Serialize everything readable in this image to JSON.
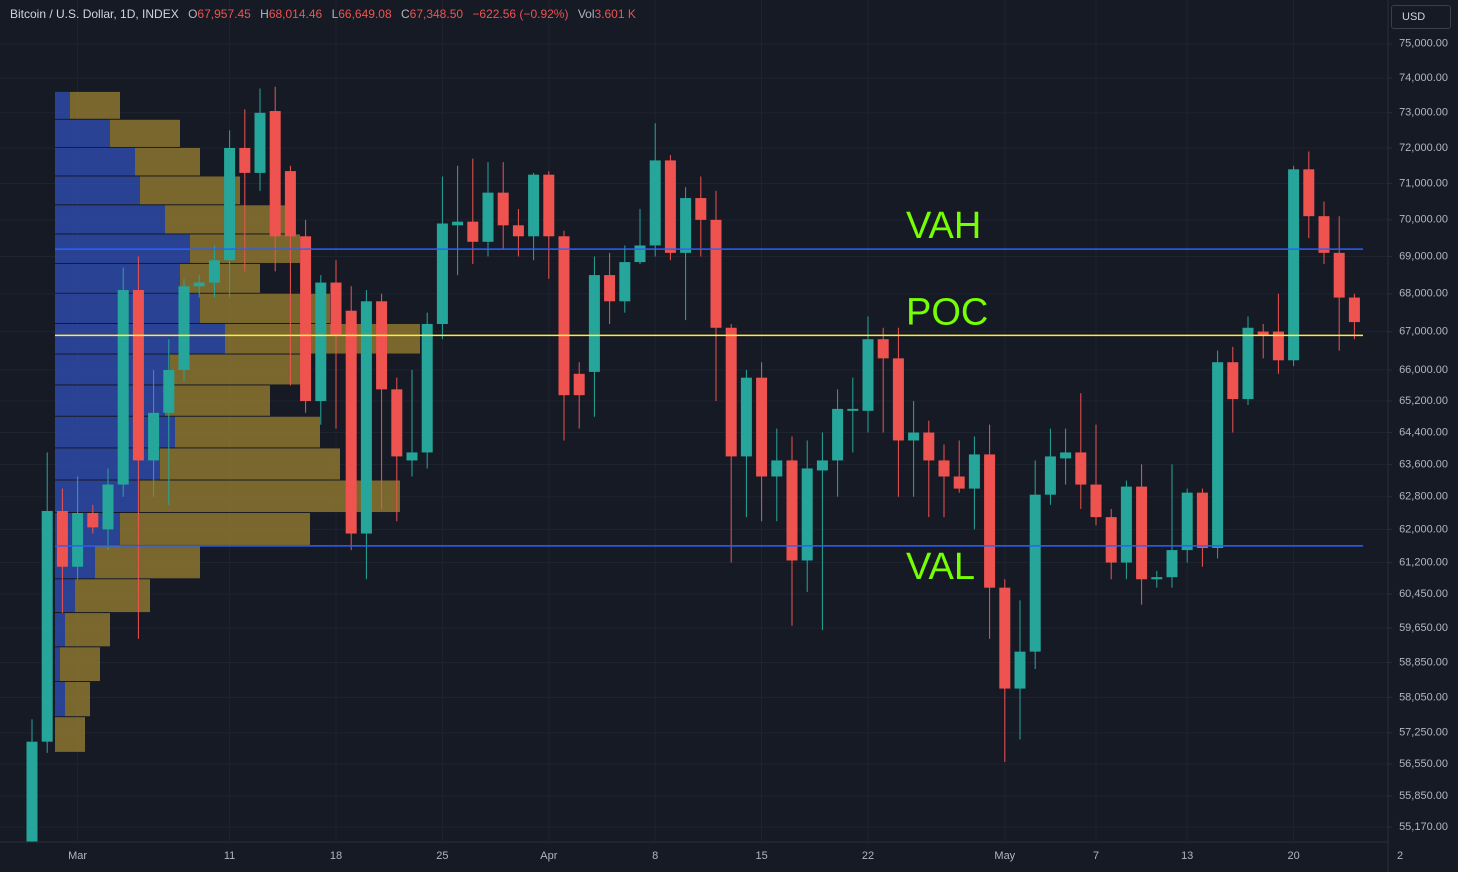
{
  "chart_data": {
    "type": "candlestick",
    "header": {
      "symbol": "Bitcoin / U.S. Dollar, 1D, INDEX",
      "fields": [
        {
          "label": "O",
          "value": "67,957.45"
        },
        {
          "label": "H",
          "value": "68,014.46"
        },
        {
          "label": "L",
          "value": "66,649.08"
        },
        {
          "label": "C",
          "value": "67,348.50"
        }
      ],
      "change": "−622.56 (−0.92%)",
      "volume_label": "Vol",
      "volume": "3.601 K"
    },
    "currency_button": "USD",
    "log_scale": true,
    "grid": true,
    "up_color": "#26a69a",
    "down_color": "#ef5350",
    "categories": [
      null,
      null,
      null,
      "Mar",
      null,
      null,
      null,
      null,
      null,
      null,
      null,
      null,
      null,
      "11",
      null,
      null,
      null,
      null,
      null,
      null,
      "18",
      null,
      null,
      null,
      null,
      null,
      null,
      "25",
      null,
      null,
      null,
      null,
      null,
      null,
      "Apr",
      null,
      null,
      null,
      null,
      null,
      null,
      "8",
      null,
      null,
      null,
      null,
      null,
      null,
      "15",
      null,
      null,
      null,
      null,
      null,
      null,
      "22",
      null,
      null,
      null,
      null,
      null,
      null,
      null,
      null,
      "May",
      null,
      null,
      null,
      null,
      null,
      "7",
      null,
      null,
      null,
      null,
      null,
      "13",
      null,
      null,
      null,
      null,
      null,
      null,
      "20",
      null,
      null,
      null,
      null,
      null,
      null,
      "2"
    ],
    "open": [
      54500,
      57050,
      62450,
      61100,
      62400,
      62000,
      63100,
      68100,
      63700,
      64900,
      66000,
      68200,
      68300,
      68900,
      72000,
      71300,
      73050,
      71350,
      69550,
      65200,
      68300,
      67550,
      61900,
      67800,
      65500,
      63700,
      63900,
      67200,
      69850,
      69950,
      69400,
      70750,
      69850,
      69550,
      71250,
      69550,
      65900,
      65950,
      68500,
      67800,
      68850,
      69300,
      71650,
      69100,
      70600,
      70000,
      67100,
      63800,
      65800,
      63300,
      63700,
      61250,
      63450,
      63700,
      64950,
      64950,
      66800,
      66300,
      64200,
      64400,
      63700,
      63300,
      63000,
      63850,
      60600,
      58250,
      59100,
      62850,
      63750,
      63900,
      63100,
      62300,
      61200,
      63050,
      60800,
      60850,
      61500,
      62900,
      61550,
      66200,
      65250,
      67000,
      67000,
      66250,
      71400,
      70100,
      69100,
      67900,
      null,
      null,
      null
    ],
    "high": [
      57550,
      63900,
      63000,
      63300,
      62600,
      63500,
      68700,
      69000,
      66000,
      66800,
      68400,
      68500,
      69300,
      72500,
      73100,
      73700,
      73750,
      71500,
      70000,
      68500,
      68900,
      68200,
      68100,
      68000,
      65800,
      66000,
      67500,
      71200,
      71500,
      71700,
      71600,
      71600,
      70300,
      71300,
      71350,
      69700,
      66200,
      69000,
      69100,
      69300,
      70300,
      72700,
      71800,
      70900,
      71200,
      70800,
      67200,
      66000,
      66200,
      64500,
      64300,
      64200,
      64400,
      65500,
      65800,
      67400,
      67100,
      67100,
      65200,
      64700,
      64100,
      64200,
      64300,
      64600,
      60800,
      60300,
      63700,
      64500,
      64500,
      65400,
      64600,
      62500,
      63200,
      63600,
      61000,
      63600,
      63000,
      63000,
      66500,
      66600,
      67400,
      67200,
      68000,
      71500,
      71900,
      70500,
      70100,
      68000,
      null,
      null,
      null
    ],
    "low": [
      54300,
      56800,
      60000,
      60800,
      61900,
      61500,
      62800,
      59400,
      62800,
      62600,
      65700,
      67900,
      67900,
      67900,
      68600,
      70800,
      68600,
      65600,
      64900,
      64600,
      64500,
      61500,
      60800,
      62500,
      62200,
      63300,
      63500,
      66800,
      68500,
      68800,
      69000,
      69200,
      69000,
      68900,
      68400,
      64200,
      64500,
      64800,
      67200,
      67500,
      68800,
      69000,
      68900,
      67300,
      69000,
      65200,
      61200,
      62300,
      62200,
      62200,
      59700,
      60500,
      59600,
      62800,
      63900,
      64400,
      64400,
      62800,
      62800,
      62300,
      62300,
      62900,
      62000,
      59400,
      56600,
      57100,
      58700,
      62600,
      63100,
      62500,
      62100,
      60800,
      60800,
      60200,
      60600,
      60600,
      61200,
      61100,
      61300,
      64400,
      65100,
      66300,
      65900,
      66100,
      69500,
      68800,
      66500,
      66800,
      null,
      null,
      null
    ],
    "close": [
      57050,
      62450,
      61100,
      62400,
      62050,
      63100,
      68100,
      63700,
      64900,
      66000,
      68200,
      68300,
      68900,
      72000,
      71300,
      73000,
      69550,
      69550,
      65200,
      68300,
      66900,
      61900,
      67800,
      65500,
      63800,
      63900,
      67200,
      69900,
      69950,
      69400,
      70750,
      69850,
      69550,
      71250,
      69550,
      65350,
      65350,
      68500,
      67800,
      68850,
      69300,
      71650,
      69100,
      70600,
      70000,
      67100,
      63800,
      65800,
      63300,
      63700,
      61250,
      63500,
      63700,
      65000,
      65000,
      66800,
      66300,
      64200,
      64400,
      63700,
      63300,
      63000,
      63850,
      60600,
      58250,
      59100,
      62850,
      63800,
      63900,
      63100,
      62300,
      61200,
      63050,
      60800,
      60850,
      61500,
      62900,
      61550,
      66200,
      65250,
      67100,
      66900,
      66250,
      71400,
      70100,
      69100,
      67900,
      67250,
      null,
      null,
      null
    ],
    "ylim": [
      54850,
      76300
    ],
    "yticks": [
      {
        "value": 75000,
        "label": "75,000.00"
      },
      {
        "value": 74000,
        "label": "74,000.00"
      },
      {
        "value": 73000,
        "label": "73,000.00"
      },
      {
        "value": 72000,
        "label": "72,000.00"
      },
      {
        "value": 71000,
        "label": "71,000.00"
      },
      {
        "value": 70000,
        "label": "70,000.00"
      },
      {
        "value": 69000,
        "label": "69,000.00"
      },
      {
        "value": 68000,
        "label": "68,000.00"
      },
      {
        "value": 67000,
        "label": "67,000.00"
      },
      {
        "value": 66000,
        "label": "66,000.00"
      },
      {
        "value": 65200,
        "label": "65,200.00"
      },
      {
        "value": 64400,
        "label": "64,400.00"
      },
      {
        "value": 63600,
        "label": "63,600.00"
      },
      {
        "value": 62800,
        "label": "62,800.00"
      },
      {
        "value": 62000,
        "label": "62,000.00"
      },
      {
        "value": 61200,
        "label": "61,200.00"
      },
      {
        "value": 60450,
        "label": "60,450.00"
      },
      {
        "value": 59650,
        "label": "59,650.00"
      },
      {
        "value": 58850,
        "label": "58,850.00"
      },
      {
        "value": 58050,
        "label": "58,050.00"
      },
      {
        "value": 57250,
        "label": "57,250.00"
      },
      {
        "value": 56550,
        "label": "56,550.00"
      },
      {
        "value": 55850,
        "label": "55,850.00"
      },
      {
        "value": 55170,
        "label": "55,170.00"
      }
    ],
    "levels": [
      {
        "name": "VAH",
        "value": 69200,
        "color": "#2962ff"
      },
      {
        "name": "POC",
        "value": 66900,
        "color": "#ffeb3b"
      },
      {
        "name": "VAL",
        "value": 61600,
        "color": "#2962ff"
      }
    ],
    "level_label_color": "#76ff03",
    "volume_profile": {
      "up_color": "#2e4aa8",
      "down_color": "#8c7530",
      "prices": [
        73200,
        72400,
        71600,
        70800,
        70000,
        69200,
        68400,
        67600,
        66800,
        66000,
        65200,
        64400,
        63600,
        62800,
        62000,
        61200,
        60400,
        59600,
        58800,
        58000,
        57200
      ],
      "up": [
        15,
        55,
        80,
        85,
        110,
        135,
        125,
        145,
        170,
        115,
        110,
        120,
        105,
        85,
        65,
        40,
        20,
        10,
        5,
        10,
        0
      ],
      "down": [
        50,
        70,
        65,
        100,
        125,
        110,
        80,
        130,
        195,
        140,
        105,
        145,
        180,
        260,
        190,
        105,
        75,
        45,
        40,
        25,
        30
      ]
    }
  }
}
